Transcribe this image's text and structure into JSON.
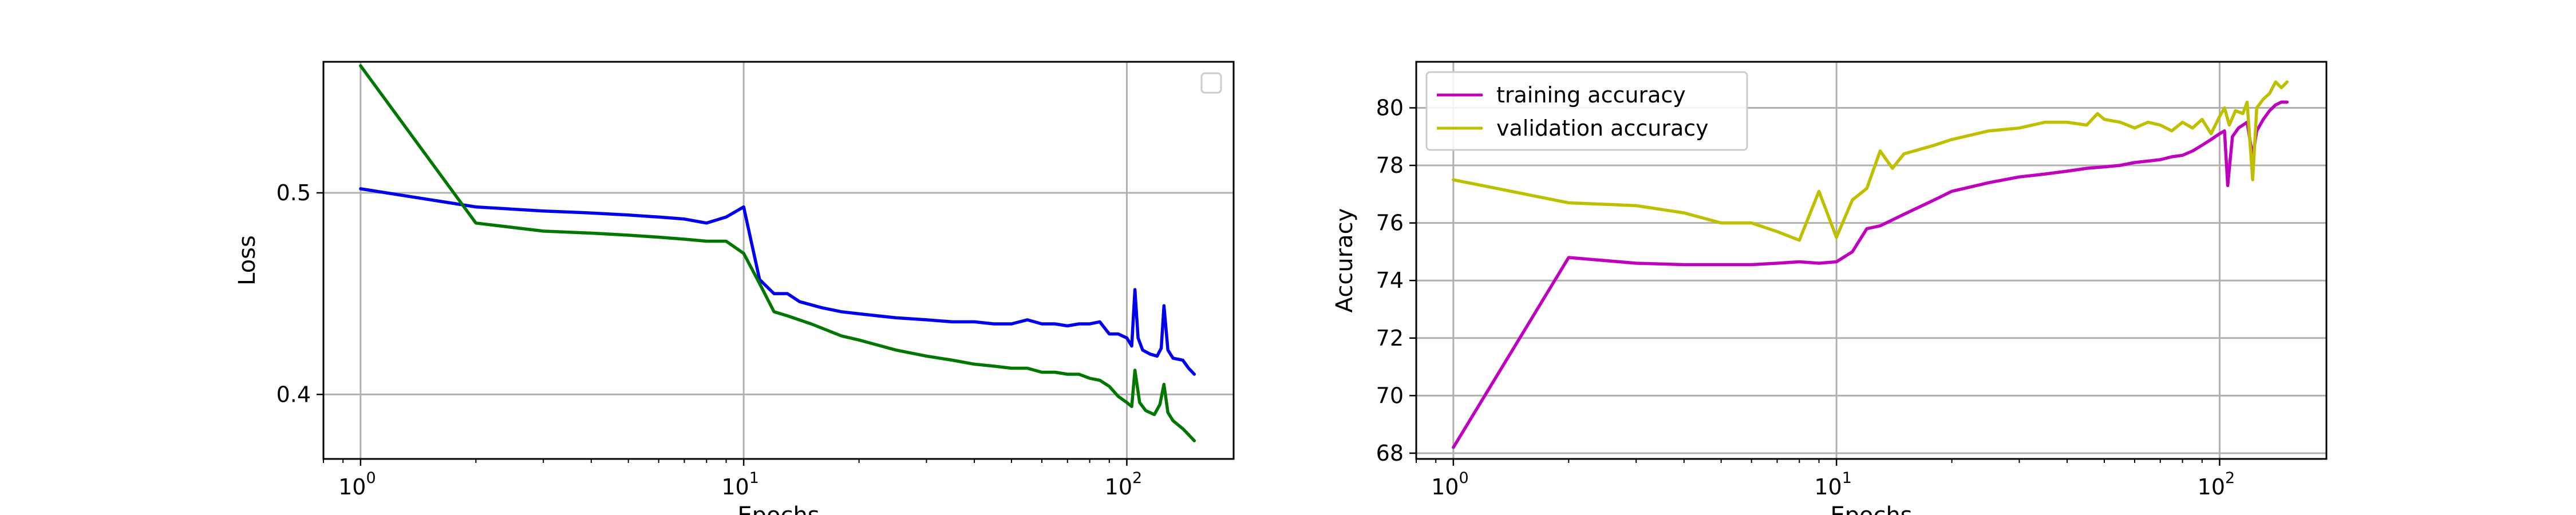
{
  "chart_data": [
    {
      "type": "line",
      "title": "",
      "xlabel": "Epochs",
      "ylabel": "Loss",
      "xscale": "log",
      "xlim": [
        0.8,
        190
      ],
      "ylim": [
        0.368,
        0.565
      ],
      "grid": true,
      "legend": {
        "placement": "top-right",
        "entries": []
      },
      "xticks": [
        {
          "value": 1,
          "base": "10",
          "exp": "0"
        },
        {
          "value": 10,
          "base": "10",
          "exp": "1"
        },
        {
          "value": 100,
          "base": "10",
          "exp": "2"
        }
      ],
      "yticks": [
        {
          "value": 0.4,
          "label": "0.4"
        },
        {
          "value": 0.5,
          "label": "0.5"
        }
      ],
      "series": [
        {
          "color": "#0000ee",
          "points": [
            [
              1,
              0.502
            ],
            [
              2,
              0.493
            ],
            [
              3,
              0.491
            ],
            [
              4,
              0.49
            ],
            [
              5,
              0.489
            ],
            [
              6,
              0.488
            ],
            [
              7,
              0.487
            ],
            [
              8,
              0.485
            ],
            [
              9,
              0.488
            ],
            [
              10,
              0.493
            ],
            [
              11,
              0.457
            ],
            [
              12,
              0.45
            ],
            [
              13,
              0.45
            ],
            [
              14,
              0.446
            ],
            [
              16,
              0.443
            ],
            [
              18,
              0.441
            ],
            [
              20,
              0.44
            ],
            [
              25,
              0.438
            ],
            [
              30,
              0.437
            ],
            [
              35,
              0.436
            ],
            [
              40,
              0.436
            ],
            [
              45,
              0.435
            ],
            [
              50,
              0.435
            ],
            [
              55,
              0.437
            ],
            [
              60,
              0.435
            ],
            [
              65,
              0.435
            ],
            [
              70,
              0.434
            ],
            [
              75,
              0.435
            ],
            [
              80,
              0.435
            ],
            [
              85,
              0.436
            ],
            [
              90,
              0.43
            ],
            [
              95,
              0.43
            ],
            [
              100,
              0.428
            ],
            [
              103,
              0.424
            ],
            [
              105,
              0.452
            ],
            [
              107,
              0.428
            ],
            [
              110,
              0.422
            ],
            [
              115,
              0.42
            ],
            [
              120,
              0.419
            ],
            [
              123,
              0.423
            ],
            [
              125,
              0.444
            ],
            [
              128,
              0.422
            ],
            [
              132,
              0.418
            ],
            [
              140,
              0.417
            ],
            [
              145,
              0.413
            ],
            [
              150,
              0.41
            ]
          ]
        },
        {
          "color": "#007700",
          "points": [
            [
              1,
              0.563
            ],
            [
              2,
              0.485
            ],
            [
              3,
              0.481
            ],
            [
              4,
              0.48
            ],
            [
              5,
              0.479
            ],
            [
              6,
              0.478
            ],
            [
              7,
              0.477
            ],
            [
              8,
              0.476
            ],
            [
              9,
              0.476
            ],
            [
              10,
              0.47
            ],
            [
              11,
              0.455
            ],
            [
              12,
              0.441
            ],
            [
              13,
              0.439
            ],
            [
              15,
              0.435
            ],
            [
              18,
              0.429
            ],
            [
              20,
              0.427
            ],
            [
              25,
              0.422
            ],
            [
              30,
              0.419
            ],
            [
              35,
              0.417
            ],
            [
              40,
              0.415
            ],
            [
              45,
              0.414
            ],
            [
              50,
              0.413
            ],
            [
              55,
              0.413
            ],
            [
              60,
              0.411
            ],
            [
              65,
              0.411
            ],
            [
              70,
              0.41
            ],
            [
              75,
              0.41
            ],
            [
              80,
              0.408
            ],
            [
              85,
              0.407
            ],
            [
              90,
              0.404
            ],
            [
              95,
              0.399
            ],
            [
              100,
              0.396
            ],
            [
              103,
              0.394
            ],
            [
              105,
              0.412
            ],
            [
              108,
              0.396
            ],
            [
              112,
              0.392
            ],
            [
              118,
              0.39
            ],
            [
              122,
              0.395
            ],
            [
              125,
              0.405
            ],
            [
              128,
              0.391
            ],
            [
              132,
              0.387
            ],
            [
              140,
              0.383
            ],
            [
              145,
              0.38
            ],
            [
              150,
              0.377
            ]
          ]
        }
      ]
    },
    {
      "type": "line",
      "title": "",
      "xlabel": "Epochs",
      "ylabel": "Accuracy",
      "xscale": "log",
      "xlim": [
        0.8,
        190
      ],
      "ylim": [
        67.8,
        81.6
      ],
      "grid": true,
      "legend": {
        "placement": "top-left"
      },
      "xticks": [
        {
          "value": 1,
          "base": "10",
          "exp": "0"
        },
        {
          "value": 10,
          "base": "10",
          "exp": "1"
        },
        {
          "value": 100,
          "base": "10",
          "exp": "2"
        }
      ],
      "yticks": [
        {
          "value": 68,
          "label": "68"
        },
        {
          "value": 70,
          "label": "70"
        },
        {
          "value": 72,
          "label": "72"
        },
        {
          "value": 74,
          "label": "74"
        },
        {
          "value": 76,
          "label": "76"
        },
        {
          "value": 78,
          "label": "78"
        },
        {
          "value": 80,
          "label": "80"
        }
      ],
      "series": [
        {
          "name": "training accuracy",
          "color": "#bf00bf",
          "points": [
            [
              1,
              68.2
            ],
            [
              2,
              74.8
            ],
            [
              3,
              74.6
            ],
            [
              4,
              74.55
            ],
            [
              5,
              74.55
            ],
            [
              6,
              74.55
            ],
            [
              7,
              74.6
            ],
            [
              8,
              74.65
            ],
            [
              9,
              74.6
            ],
            [
              10,
              74.65
            ],
            [
              11,
              75.0
            ],
            [
              12,
              75.8
            ],
            [
              13,
              75.9
            ],
            [
              15,
              76.3
            ],
            [
              18,
              76.8
            ],
            [
              20,
              77.1
            ],
            [
              25,
              77.4
            ],
            [
              30,
              77.6
            ],
            [
              35,
              77.7
            ],
            [
              40,
              77.8
            ],
            [
              45,
              77.9
            ],
            [
              50,
              77.95
            ],
            [
              55,
              78.0
            ],
            [
              60,
              78.1
            ],
            [
              65,
              78.15
            ],
            [
              70,
              78.2
            ],
            [
              75,
              78.3
            ],
            [
              80,
              78.35
            ],
            [
              85,
              78.5
            ],
            [
              90,
              78.7
            ],
            [
              95,
              78.9
            ],
            [
              100,
              79.1
            ],
            [
              103,
              79.2
            ],
            [
              105,
              77.3
            ],
            [
              108,
              79.0
            ],
            [
              112,
              79.3
            ],
            [
              118,
              79.5
            ],
            [
              122,
              78.3
            ],
            [
              125,
              79.2
            ],
            [
              130,
              79.6
            ],
            [
              135,
              79.9
            ],
            [
              140,
              80.1
            ],
            [
              145,
              80.2
            ],
            [
              150,
              80.2
            ]
          ]
        },
        {
          "name": "validation accuracy",
          "color": "#bfbf00",
          "points": [
            [
              1,
              77.5
            ],
            [
              2,
              76.7
            ],
            [
              3,
              76.6
            ],
            [
              4,
              76.35
            ],
            [
              5,
              76.0
            ],
            [
              6,
              76.0
            ],
            [
              7,
              75.7
            ],
            [
              8,
              75.4
            ],
            [
              9,
              77.1
            ],
            [
              10,
              75.5
            ],
            [
              11,
              76.8
            ],
            [
              12,
              77.2
            ],
            [
              13,
              78.5
            ],
            [
              14,
              77.9
            ],
            [
              15,
              78.4
            ],
            [
              18,
              78.7
            ],
            [
              20,
              78.9
            ],
            [
              25,
              79.2
            ],
            [
              30,
              79.3
            ],
            [
              35,
              79.5
            ],
            [
              40,
              79.5
            ],
            [
              45,
              79.4
            ],
            [
              48,
              79.8
            ],
            [
              50,
              79.6
            ],
            [
              55,
              79.5
            ],
            [
              60,
              79.3
            ],
            [
              65,
              79.5
            ],
            [
              70,
              79.4
            ],
            [
              75,
              79.2
            ],
            [
              80,
              79.5
            ],
            [
              85,
              79.3
            ],
            [
              90,
              79.6
            ],
            [
              95,
              79.1
            ],
            [
              100,
              79.7
            ],
            [
              103,
              80.0
            ],
            [
              106,
              79.4
            ],
            [
              110,
              79.9
            ],
            [
              115,
              79.8
            ],
            [
              118,
              80.2
            ],
            [
              122,
              77.5
            ],
            [
              125,
              80.0
            ],
            [
              130,
              80.3
            ],
            [
              135,
              80.5
            ],
            [
              140,
              80.9
            ],
            [
              145,
              80.7
            ],
            [
              150,
              80.9
            ]
          ]
        }
      ]
    }
  ]
}
